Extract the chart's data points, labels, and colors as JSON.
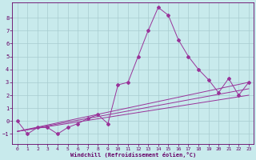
{
  "xlabel": "Windchill (Refroidissement éolien,°C)",
  "x_values": [
    0,
    1,
    2,
    3,
    4,
    5,
    6,
    7,
    8,
    9,
    10,
    11,
    12,
    13,
    14,
    15,
    16,
    17,
    18,
    19,
    20,
    21,
    22,
    23
  ],
  "line1": [
    0,
    -1,
    -0.5,
    -0.5,
    -1,
    -0.5,
    -0.2,
    0.2,
    0.5,
    -0.2,
    2.8,
    3.0,
    5.0,
    7.0,
    8.8,
    8.2,
    6.3,
    5.0,
    4.0,
    3.2,
    2.2,
    3.3,
    2.0,
    3.0
  ],
  "trend1_start": -0.8,
  "trend1_end": 3.0,
  "trend2_start": -0.8,
  "trend2_end": 2.5,
  "trend3_start": -0.8,
  "trend3_end": 2.0,
  "line_color": "#993399",
  "bg_color": "#c8eaec",
  "grid_color": "#a8cdd0",
  "axis_color": "#660066",
  "ylim": [
    -1.8,
    9.2
  ],
  "xlim": [
    -0.5,
    23.5
  ],
  "yticks": [
    -1,
    0,
    1,
    2,
    3,
    4,
    5,
    6,
    7,
    8
  ],
  "xticks": [
    0,
    1,
    2,
    3,
    4,
    5,
    6,
    7,
    8,
    9,
    10,
    11,
    12,
    13,
    14,
    15,
    16,
    17,
    18,
    19,
    20,
    21,
    22,
    23
  ]
}
